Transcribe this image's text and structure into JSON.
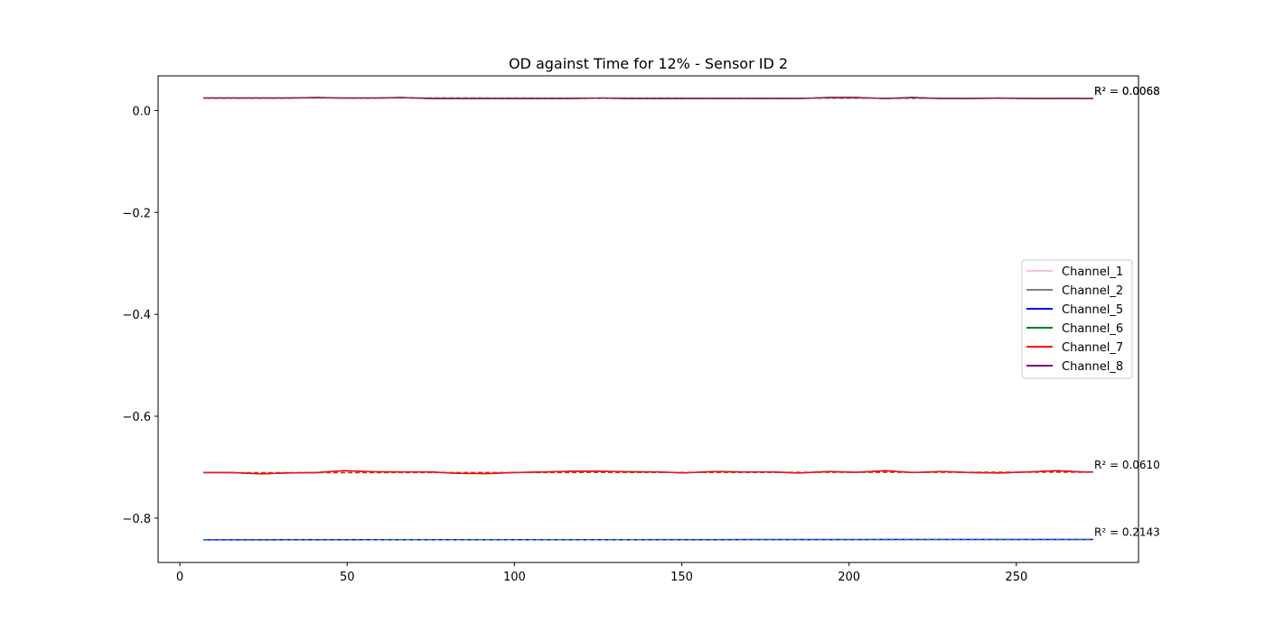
{
  "chart_data": {
    "type": "line",
    "title": "OD against Time for 12% - Sensor ID 2",
    "xlabel": "",
    "ylabel": "",
    "xlim": [
      -6.5,
      286.5
    ],
    "ylim": [
      -0.887,
      0.068
    ],
    "x_ticks": [
      0,
      50,
      100,
      150,
      200,
      250
    ],
    "y_ticks": [
      0.0,
      -0.2,
      -0.4,
      -0.6,
      -0.8
    ],
    "y_tick_labels": [
      "0.0",
      "−0.2",
      "−0.4",
      "−0.6",
      "−0.8"
    ],
    "x": [
      7,
      15,
      24,
      32,
      41,
      49,
      58,
      66,
      75,
      83,
      92,
      100,
      109,
      117,
      126,
      134,
      143,
      151,
      160,
      168,
      177,
      185,
      194,
      202,
      211,
      219,
      228,
      236,
      245,
      253,
      262,
      270,
      273
    ],
    "series": [
      {
        "name": "Channel_1",
        "color": "#ffc0cb",
        "values": [
          0.0245,
          0.0245,
          0.0245,
          0.0245,
          0.0255,
          0.0245,
          0.0245,
          0.0255,
          0.0235,
          0.0235,
          0.0235,
          0.0235,
          0.0235,
          0.0235,
          0.0245,
          0.0235,
          0.0235,
          0.0235,
          0.0235,
          0.0235,
          0.0235,
          0.0235,
          0.0255,
          0.0255,
          0.0235,
          0.0255,
          0.0235,
          0.0235,
          0.0245,
          0.0235,
          0.0235,
          0.0235,
          0.0235
        ]
      },
      {
        "name": "Channel_2",
        "color": "#808080",
        "values": [
          0.0245,
          0.0245,
          0.0245,
          0.0245,
          0.0255,
          0.0245,
          0.0245,
          0.0255,
          0.0235,
          0.0235,
          0.0235,
          0.0235,
          0.0235,
          0.0235,
          0.0245,
          0.0235,
          0.0235,
          0.0235,
          0.0235,
          0.0235,
          0.0235,
          0.0235,
          0.0255,
          0.0255,
          0.0235,
          0.0255,
          0.0235,
          0.0235,
          0.0245,
          0.0235,
          0.0235,
          0.0235,
          0.0235
        ]
      },
      {
        "name": "Channel_5",
        "color": "#0000ff",
        "values": [
          -0.8425,
          -0.8425,
          -0.8425,
          -0.8424,
          -0.8424,
          -0.8424,
          -0.8424,
          -0.8423,
          -0.8423,
          -0.8423,
          -0.8423,
          -0.8422,
          -0.8422,
          -0.8422,
          -0.8422,
          -0.8421,
          -0.8421,
          -0.8421,
          -0.8421,
          -0.842,
          -0.842,
          -0.842,
          -0.842,
          -0.842,
          -0.8419,
          -0.8419,
          -0.8419,
          -0.8419,
          -0.8418,
          -0.8418,
          -0.8418,
          -0.8418,
          -0.8418
        ]
      },
      {
        "name": "Channel_6",
        "color": "#008000",
        "values": [
          -0.7105,
          -0.7105,
          -0.713,
          -0.7115,
          -0.7105,
          -0.707,
          -0.709,
          -0.7095,
          -0.7095,
          -0.712,
          -0.7125,
          -0.7105,
          -0.7095,
          -0.708,
          -0.708,
          -0.709,
          -0.7095,
          -0.711,
          -0.7085,
          -0.7095,
          -0.7095,
          -0.7115,
          -0.7085,
          -0.71,
          -0.707,
          -0.7105,
          -0.7085,
          -0.7105,
          -0.7115,
          -0.7095,
          -0.707,
          -0.7095,
          -0.7095
        ]
      },
      {
        "name": "Channel_7",
        "color": "#ff0000",
        "values": [
          -0.7105,
          -0.7105,
          -0.713,
          -0.7115,
          -0.7105,
          -0.707,
          -0.709,
          -0.7095,
          -0.7095,
          -0.712,
          -0.7125,
          -0.7105,
          -0.7095,
          -0.708,
          -0.708,
          -0.709,
          -0.7095,
          -0.711,
          -0.7085,
          -0.7095,
          -0.7095,
          -0.7115,
          -0.7085,
          -0.71,
          -0.707,
          -0.7105,
          -0.7085,
          -0.7105,
          -0.7115,
          -0.7095,
          -0.707,
          -0.7095,
          -0.7095
        ]
      },
      {
        "name": "Channel_8",
        "color": "#800080",
        "values": [
          0.0245,
          0.0245,
          0.0245,
          0.0245,
          0.0255,
          0.0245,
          0.0245,
          0.0255,
          0.0235,
          0.0235,
          0.0235,
          0.0235,
          0.0235,
          0.0235,
          0.0245,
          0.0235,
          0.0235,
          0.0235,
          0.0235,
          0.0235,
          0.0235,
          0.0235,
          0.0255,
          0.0255,
          0.0235,
          0.0255,
          0.0235,
          0.0235,
          0.0245,
          0.0235,
          0.0235,
          0.0235,
          0.0235
        ]
      }
    ],
    "fits": [
      {
        "group": "top",
        "color": "#8b4513",
        "x": [
          7,
          273
        ],
        "y": [
          0.0248,
          0.0238
        ]
      },
      {
        "group": "middle",
        "color": "#d62728",
        "x": [
          7,
          273
        ],
        "y": [
          -0.7108,
          -0.7098
        ]
      },
      {
        "group": "bottom",
        "color": "#1f77b4",
        "x": [
          7,
          273
        ],
        "y": [
          -0.8425,
          -0.8418
        ]
      }
    ],
    "annotations": [
      {
        "text": "R² = 0.0068",
        "x": 273,
        "y": 0.0235
      },
      {
        "text": "R² = 0.0068",
        "x": 273,
        "y": 0.0235
      },
      {
        "text": "R² = 0.0610",
        "x": 273,
        "y": -0.7095
      },
      {
        "text": "R² = 0.2143",
        "x": 273,
        "y": -0.8418
      }
    ],
    "legend": {
      "placement": "center-right",
      "entries": [
        "Channel_1",
        "Channel_2",
        "Channel_5",
        "Channel_6",
        "Channel_7",
        "Channel_8"
      ]
    },
    "grid": false
  }
}
